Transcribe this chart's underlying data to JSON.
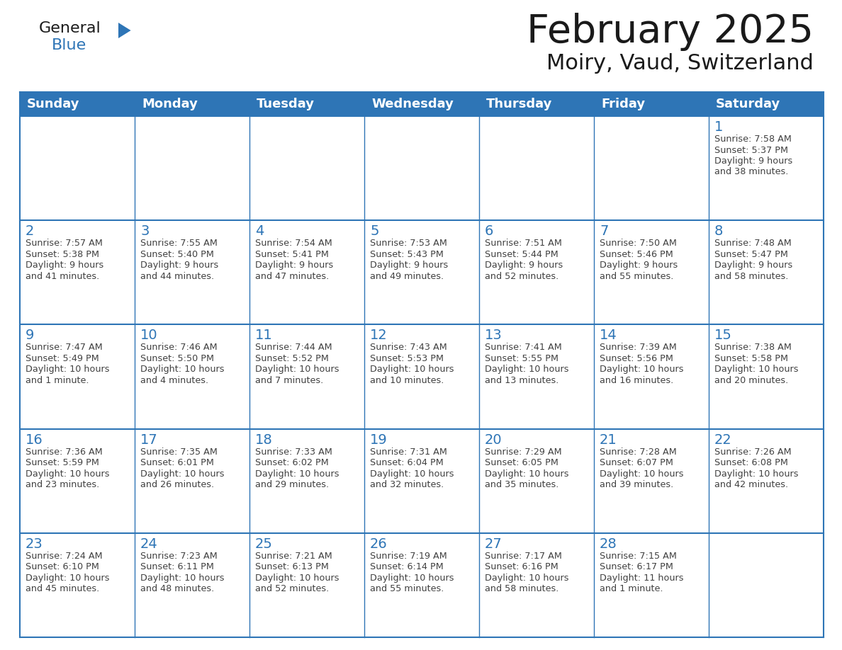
{
  "title": "February 2025",
  "subtitle": "Moiry, Vaud, Switzerland",
  "header_bg": "#2E75B6",
  "header_text_color": "#FFFFFF",
  "cell_bg": "#FFFFFF",
  "cell_border_color": "#2E75B6",
  "day_number_color": "#2E75B6",
  "cell_text_color": "#404040",
  "days_of_week": [
    "Sunday",
    "Monday",
    "Tuesday",
    "Wednesday",
    "Thursday",
    "Friday",
    "Saturday"
  ],
  "logo_general_color": "#1a1a1a",
  "logo_blue_color": "#2E75B6",
  "calendar_data": [
    [
      null,
      null,
      null,
      null,
      null,
      null,
      {
        "day": 1,
        "sunrise": "7:58 AM",
        "sunset": "5:37 PM",
        "daylight": "9 hours and 38 minutes."
      }
    ],
    [
      {
        "day": 2,
        "sunrise": "7:57 AM",
        "sunset": "5:38 PM",
        "daylight": "9 hours and 41 minutes."
      },
      {
        "day": 3,
        "sunrise": "7:55 AM",
        "sunset": "5:40 PM",
        "daylight": "9 hours and 44 minutes."
      },
      {
        "day": 4,
        "sunrise": "7:54 AM",
        "sunset": "5:41 PM",
        "daylight": "9 hours and 47 minutes."
      },
      {
        "day": 5,
        "sunrise": "7:53 AM",
        "sunset": "5:43 PM",
        "daylight": "9 hours and 49 minutes."
      },
      {
        "day": 6,
        "sunrise": "7:51 AM",
        "sunset": "5:44 PM",
        "daylight": "9 hours and 52 minutes."
      },
      {
        "day": 7,
        "sunrise": "7:50 AM",
        "sunset": "5:46 PM",
        "daylight": "9 hours and 55 minutes."
      },
      {
        "day": 8,
        "sunrise": "7:48 AM",
        "sunset": "5:47 PM",
        "daylight": "9 hours and 58 minutes."
      }
    ],
    [
      {
        "day": 9,
        "sunrise": "7:47 AM",
        "sunset": "5:49 PM",
        "daylight": "10 hours and 1 minute."
      },
      {
        "day": 10,
        "sunrise": "7:46 AM",
        "sunset": "5:50 PM",
        "daylight": "10 hours and 4 minutes."
      },
      {
        "day": 11,
        "sunrise": "7:44 AM",
        "sunset": "5:52 PM",
        "daylight": "10 hours and 7 minutes."
      },
      {
        "day": 12,
        "sunrise": "7:43 AM",
        "sunset": "5:53 PM",
        "daylight": "10 hours and 10 minutes."
      },
      {
        "day": 13,
        "sunrise": "7:41 AM",
        "sunset": "5:55 PM",
        "daylight": "10 hours and 13 minutes."
      },
      {
        "day": 14,
        "sunrise": "7:39 AM",
        "sunset": "5:56 PM",
        "daylight": "10 hours and 16 minutes."
      },
      {
        "day": 15,
        "sunrise": "7:38 AM",
        "sunset": "5:58 PM",
        "daylight": "10 hours and 20 minutes."
      }
    ],
    [
      {
        "day": 16,
        "sunrise": "7:36 AM",
        "sunset": "5:59 PM",
        "daylight": "10 hours and 23 minutes."
      },
      {
        "day": 17,
        "sunrise": "7:35 AM",
        "sunset": "6:01 PM",
        "daylight": "10 hours and 26 minutes."
      },
      {
        "day": 18,
        "sunrise": "7:33 AM",
        "sunset": "6:02 PM",
        "daylight": "10 hours and 29 minutes."
      },
      {
        "day": 19,
        "sunrise": "7:31 AM",
        "sunset": "6:04 PM",
        "daylight": "10 hours and 32 minutes."
      },
      {
        "day": 20,
        "sunrise": "7:29 AM",
        "sunset": "6:05 PM",
        "daylight": "10 hours and 35 minutes."
      },
      {
        "day": 21,
        "sunrise": "7:28 AM",
        "sunset": "6:07 PM",
        "daylight": "10 hours and 39 minutes."
      },
      {
        "day": 22,
        "sunrise": "7:26 AM",
        "sunset": "6:08 PM",
        "daylight": "10 hours and 42 minutes."
      }
    ],
    [
      {
        "day": 23,
        "sunrise": "7:24 AM",
        "sunset": "6:10 PM",
        "daylight": "10 hours and 45 minutes."
      },
      {
        "day": 24,
        "sunrise": "7:23 AM",
        "sunset": "6:11 PM",
        "daylight": "10 hours and 48 minutes."
      },
      {
        "day": 25,
        "sunrise": "7:21 AM",
        "sunset": "6:13 PM",
        "daylight": "10 hours and 52 minutes."
      },
      {
        "day": 26,
        "sunrise": "7:19 AM",
        "sunset": "6:14 PM",
        "daylight": "10 hours and 55 minutes."
      },
      {
        "day": 27,
        "sunrise": "7:17 AM",
        "sunset": "6:16 PM",
        "daylight": "10 hours and 58 minutes."
      },
      {
        "day": 28,
        "sunrise": "7:15 AM",
        "sunset": "6:17 PM",
        "daylight": "11 hours and 1 minute."
      },
      null
    ]
  ]
}
